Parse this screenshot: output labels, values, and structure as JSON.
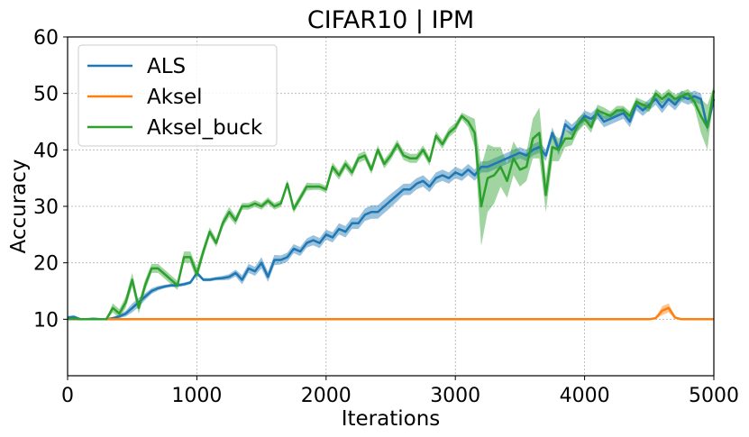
{
  "chart_data": {
    "type": "line",
    "title": "CIFAR10 | IPM",
    "xlabel": "Iterations",
    "ylabel": "Accuracy",
    "xlim": [
      0,
      5000
    ],
    "ylim": [
      0,
      60
    ],
    "xticks": [
      0,
      1000,
      2000,
      3000,
      4000,
      5000
    ],
    "yticks": [
      10,
      20,
      30,
      40,
      50,
      60
    ],
    "grid": true,
    "legend_position": "top-left",
    "series": [
      {
        "name": "ALS",
        "color": "#1f77b4",
        "x": [
          0,
          50,
          100,
          150,
          200,
          250,
          300,
          350,
          400,
          450,
          500,
          550,
          600,
          650,
          700,
          750,
          800,
          850,
          900,
          950,
          1000,
          1050,
          1100,
          1150,
          1200,
          1250,
          1300,
          1350,
          1400,
          1450,
          1500,
          1550,
          1600,
          1650,
          1700,
          1750,
          1800,
          1850,
          1900,
          1950,
          2000,
          2050,
          2100,
          2150,
          2200,
          2250,
          2300,
          2350,
          2400,
          2450,
          2500,
          2550,
          2600,
          2650,
          2700,
          2750,
          2800,
          2850,
          2900,
          2950,
          3000,
          3050,
          3100,
          3150,
          3200,
          3250,
          3300,
          3350,
          3400,
          3450,
          3500,
          3550,
          3600,
          3650,
          3700,
          3750,
          3800,
          3850,
          3900,
          3950,
          4000,
          4050,
          4100,
          4150,
          4200,
          4250,
          4300,
          4350,
          4400,
          4450,
          4500,
          4550,
          4600,
          4650,
          4700,
          4750,
          4800,
          4850,
          4900,
          4950,
          5000
        ],
        "values": [
          10.3,
          10.4,
          10.0,
          10.0,
          10.1,
          10.0,
          10.0,
          10.2,
          10.5,
          11.0,
          12.0,
          13.0,
          14.0,
          15.0,
          15.5,
          15.8,
          16.0,
          16.0,
          16.2,
          16.5,
          18.2,
          17.0,
          17.0,
          17.2,
          17.3,
          17.5,
          18.2,
          17.0,
          19.0,
          18.5,
          20.0,
          17.5,
          20.5,
          20.5,
          21.0,
          22.5,
          22.0,
          23.5,
          24.0,
          23.5,
          25.0,
          24.5,
          26.0,
          25.5,
          27.0,
          27.0,
          28.5,
          29.0,
          29.0,
          30.0,
          31.0,
          32.0,
          33.0,
          33.0,
          34.0,
          34.5,
          33.5,
          35.0,
          35.5,
          35.0,
          36.0,
          35.5,
          36.5,
          35.5,
          37.0,
          37.0,
          37.5,
          38.0,
          38.5,
          39.0,
          39.5,
          39.0,
          40.0,
          40.5,
          39.0,
          43.0,
          40.0,
          44.5,
          43.5,
          44.5,
          46.0,
          45.5,
          46.5,
          45.0,
          45.5,
          46.0,
          46.5,
          45.0,
          48.0,
          47.0,
          48.0,
          49.0,
          47.5,
          49.0,
          48.0,
          49.5,
          49.0,
          49.5,
          49.0,
          44.0,
          49.0
        ],
        "band": [
          0.3,
          0.3,
          0.2,
          0.1,
          0.1,
          0.1,
          0.1,
          0.2,
          0.3,
          0.5,
          0.8,
          0.8,
          0.6,
          0.5,
          0.4,
          0.3,
          0.3,
          0.3,
          0.3,
          0.3,
          0.4,
          0.3,
          0.3,
          0.3,
          0.4,
          0.5,
          0.6,
          0.8,
          0.8,
          0.8,
          1.0,
          0.9,
          0.9,
          0.8,
          0.8,
          0.8,
          0.8,
          0.8,
          0.9,
          0.9,
          0.9,
          0.9,
          1.0,
          1.0,
          1.0,
          1.0,
          1.1,
          1.2,
          1.2,
          1.2,
          1.2,
          1.1,
          1.0,
          1.0,
          1.0,
          1.0,
          1.0,
          1.0,
          1.0,
          1.0,
          1.0,
          1.0,
          1.0,
          1.0,
          1.0,
          1.0,
          1.0,
          1.0,
          1.0,
          1.0,
          1.0,
          1.0,
          1.0,
          1.0,
          1.0,
          1.0,
          1.0,
          1.0,
          1.0,
          1.0,
          1.0,
          1.0,
          1.0,
          1.0,
          1.0,
          1.0,
          1.0,
          1.0,
          1.0,
          1.0,
          1.0,
          1.0,
          1.0,
          1.0,
          1.0,
          1.0,
          1.0,
          1.0,
          1.0,
          1.0,
          1.0
        ]
      },
      {
        "name": "Aksel",
        "color": "#ff7f0e",
        "x": [
          0,
          500,
          1000,
          1500,
          2000,
          2500,
          3000,
          3500,
          4000,
          4400,
          4500,
          4550,
          4600,
          4650,
          4700,
          4750,
          4800,
          5000
        ],
        "values": [
          10.0,
          10.0,
          10.0,
          10.0,
          10.0,
          10.0,
          10.0,
          10.0,
          10.0,
          10.0,
          10.0,
          10.2,
          11.5,
          12.0,
          10.3,
          10.0,
          10.0,
          10.0
        ],
        "band": [
          0,
          0,
          0,
          0,
          0,
          0,
          0,
          0,
          0,
          0,
          0,
          0.1,
          0.8,
          0.8,
          0.2,
          0,
          0,
          0
        ]
      },
      {
        "name": "Aksel_buck",
        "color": "#2ca02c",
        "x": [
          0,
          50,
          100,
          150,
          200,
          250,
          300,
          350,
          400,
          450,
          500,
          550,
          600,
          650,
          700,
          750,
          800,
          850,
          900,
          950,
          1000,
          1050,
          1100,
          1150,
          1200,
          1250,
          1300,
          1350,
          1400,
          1450,
          1500,
          1550,
          1600,
          1650,
          1700,
          1750,
          1800,
          1850,
          1900,
          1950,
          2000,
          2050,
          2100,
          2150,
          2200,
          2250,
          2300,
          2350,
          2400,
          2450,
          2500,
          2550,
          2600,
          2650,
          2700,
          2750,
          2800,
          2850,
          2900,
          2950,
          3000,
          3050,
          3100,
          3150,
          3200,
          3250,
          3300,
          3350,
          3400,
          3450,
          3500,
          3550,
          3600,
          3650,
          3700,
          3750,
          3800,
          3850,
          3900,
          3950,
          4000,
          4050,
          4100,
          4150,
          4200,
          4250,
          4300,
          4350,
          4400,
          4450,
          4500,
          4550,
          4600,
          4650,
          4700,
          4750,
          4800,
          4850,
          4900,
          4950,
          5000
        ],
        "values": [
          10.0,
          10.1,
          10.0,
          10.0,
          10.0,
          10.0,
          10.0,
          12.0,
          11.0,
          13.0,
          17.0,
          12.0,
          16.0,
          19.0,
          19.0,
          18.0,
          17.0,
          16.0,
          21.0,
          21.0,
          18.0,
          22.0,
          25.5,
          23.5,
          27.0,
          29.0,
          27.5,
          30.0,
          30.0,
          30.5,
          30.0,
          31.0,
          30.0,
          30.5,
          34.0,
          29.5,
          31.5,
          33.5,
          33.5,
          33.5,
          33.0,
          37.0,
          35.5,
          37.5,
          36.0,
          38.5,
          39.0,
          36.5,
          40.0,
          37.5,
          39.0,
          41.0,
          39.0,
          38.5,
          38.5,
          40.0,
          38.0,
          42.5,
          41.0,
          43.0,
          44.0,
          46.0,
          45.0,
          43.0,
          30.0,
          35.0,
          35.5,
          37.0,
          34.5,
          38.5,
          36.5,
          37.0,
          42.0,
          43.0,
          32.0,
          40.5,
          40.0,
          42.0,
          42.0,
          44.5,
          45.5,
          44.0,
          47.0,
          46.5,
          46.0,
          47.0,
          47.0,
          46.0,
          48.5,
          48.0,
          47.5,
          50.0,
          49.0,
          50.0,
          49.0,
          49.5,
          50.0,
          48.5,
          46.0,
          44.0,
          50.5
        ],
        "band": [
          0.2,
          0.2,
          0.1,
          0.1,
          0.1,
          0.1,
          0.2,
          0.8,
          0.8,
          1.0,
          1.2,
          1.0,
          1.0,
          0.8,
          0.8,
          0.8,
          0.8,
          0.8,
          1.0,
          1.0,
          1.2,
          0.9,
          0.8,
          0.7,
          0.8,
          0.9,
          0.8,
          0.6,
          0.6,
          0.6,
          0.6,
          0.6,
          0.6,
          0.6,
          0.7,
          0.7,
          0.7,
          0.7,
          0.6,
          0.6,
          0.6,
          0.8,
          0.8,
          0.8,
          0.8,
          0.8,
          0.8,
          0.8,
          0.8,
          0.8,
          0.8,
          0.8,
          0.8,
          0.8,
          0.8,
          0.8,
          0.8,
          0.8,
          0.8,
          0.8,
          0.8,
          0.6,
          1.0,
          2.5,
          7.0,
          6.0,
          5.0,
          3.5,
          3.0,
          3.0,
          3.0,
          2.5,
          3.5,
          4.5,
          3.0,
          2.5,
          2.0,
          1.5,
          1.2,
          1.2,
          1.0,
          1.0,
          1.0,
          1.0,
          0.8,
          0.8,
          0.8,
          0.8,
          0.8,
          0.8,
          0.8,
          0.8,
          0.8,
          0.8,
          0.8,
          0.8,
          0.8,
          1.0,
          3.0,
          4.0,
          0.8
        ]
      }
    ]
  }
}
